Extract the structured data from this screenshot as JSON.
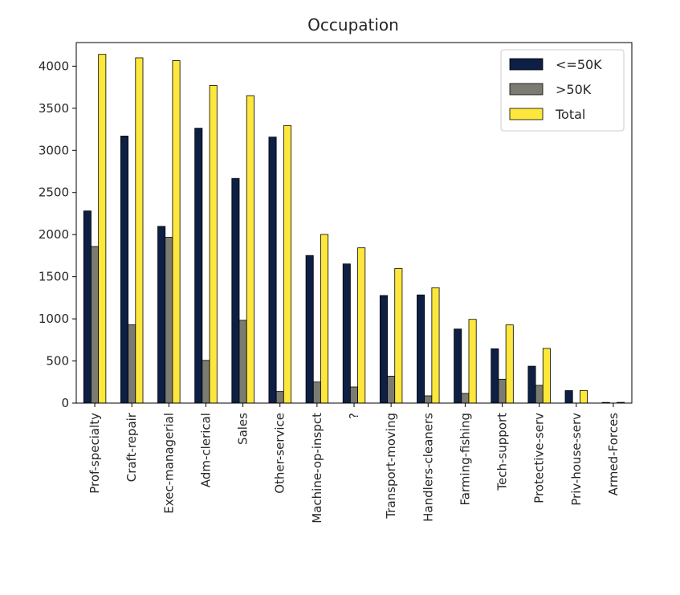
{
  "chart_data": {
    "type": "bar",
    "title": "Occupation",
    "xlabel": "",
    "ylabel": "",
    "ylim": [
      0,
      4280
    ],
    "yticks": [
      0,
      500,
      1000,
      1500,
      2000,
      2500,
      3000,
      3500,
      4000
    ],
    "grid": false,
    "legend_position": "top-right",
    "categories": [
      "Prof-specialty",
      "Craft-repair",
      "Exec-managerial",
      "Adm-clerical",
      "Sales",
      "Other-service",
      "Machine-op-inspct",
      "?",
      "Transport-moving",
      "Handlers-cleaners",
      "Farming-fishing",
      "Tech-support",
      "Protective-serv",
      "Priv-house-serv",
      "Armed-Forces"
    ],
    "series": [
      {
        "name": "<=50K",
        "color": "#0d1f45",
        "values": [
          2281,
          3170,
          2098,
          3263,
          2667,
          3158,
          1752,
          1652,
          1277,
          1284,
          879,
          645,
          438,
          148,
          8
        ]
      },
      {
        "name": ">50K",
        "color": "#7b7b72",
        "values": [
          1859,
          929,
          1968,
          507,
          983,
          137,
          250,
          191,
          320,
          86,
          115,
          283,
          211,
          1,
          1
        ]
      },
      {
        "name": "Total",
        "color": "#fde73c",
        "values": [
          4140,
          4099,
          4066,
          3770,
          3650,
          3295,
          2002,
          1843,
          1597,
          1370,
          994,
          928,
          649,
          149,
          9
        ]
      }
    ]
  }
}
